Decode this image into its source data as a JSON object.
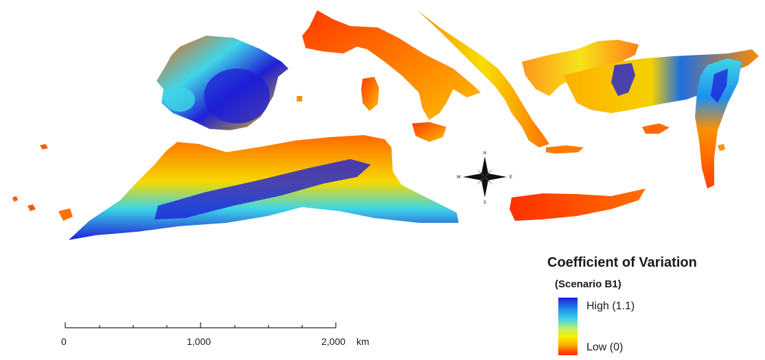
{
  "legend": {
    "title": "Coefficient of Variation",
    "subtitle": "(Scenario B1)",
    "high_label": "High (1.1)",
    "low_label": "Low (0)",
    "colors": [
      "#1f1fd6",
      "#1e8ff0",
      "#3fd6e6",
      "#c8f060",
      "#f5f000",
      "#ffb000",
      "#ff5a00",
      "#ff2a00"
    ]
  },
  "scale_bar": {
    "labels": [
      "0",
      "1,000",
      "2,000"
    ],
    "unit": "km"
  },
  "compass": {
    "north": "N",
    "south": "S",
    "east": "E",
    "west": "W"
  }
}
